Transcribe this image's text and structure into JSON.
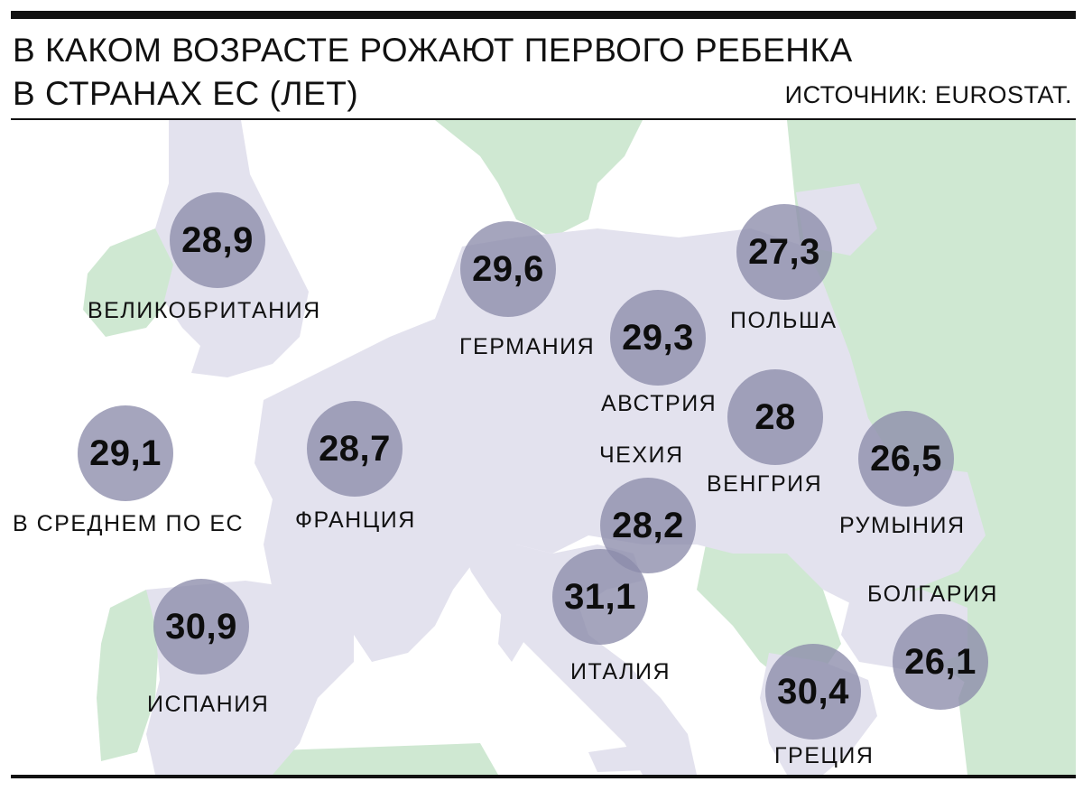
{
  "header": {
    "title_line1": "В КАКОМ ВОЗРАСТЕ РОЖАЮТ ПЕРВОГО РЕБЕНКА",
    "title_line2": "В СТРАНАХ ЕС (ЛЕТ)",
    "source": "ИСТОЧНИК: EUROSTAT."
  },
  "colors": {
    "eu_land": "#e3e2ee",
    "non_eu_land": "#cfe8d2",
    "sea": "#ffffff",
    "bubble": "#8c8caa"
  },
  "countries": [
    {
      "name": "ВЕЛИКОБРИТАНИЯ",
      "value": "28,9"
    },
    {
      "name": "ГЕРМАНИЯ",
      "value": "29,6"
    },
    {
      "name": "ПОЛЬША",
      "value": "27,3"
    },
    {
      "name": "АВСТРИЯ",
      "value": "29,3"
    },
    {
      "name": "В СРЕДНЕМ ПО ЕС",
      "value": "29,1"
    },
    {
      "name": "ФРАНЦИЯ",
      "value": "28,7"
    },
    {
      "name": "ВЕНГРИЯ",
      "value": "28"
    },
    {
      "name": "РУМЫНИЯ",
      "value": "26,5"
    },
    {
      "name": "ЧЕХИЯ",
      "value": "28,2"
    },
    {
      "name": "ИТАЛИЯ",
      "value": "31,1"
    },
    {
      "name": "БОЛГАРИЯ",
      "value": "26,1"
    },
    {
      "name": "ИСПАНИЯ",
      "value": "30,9"
    },
    {
      "name": "ГРЕЦИЯ",
      "value": "30,4"
    }
  ]
}
